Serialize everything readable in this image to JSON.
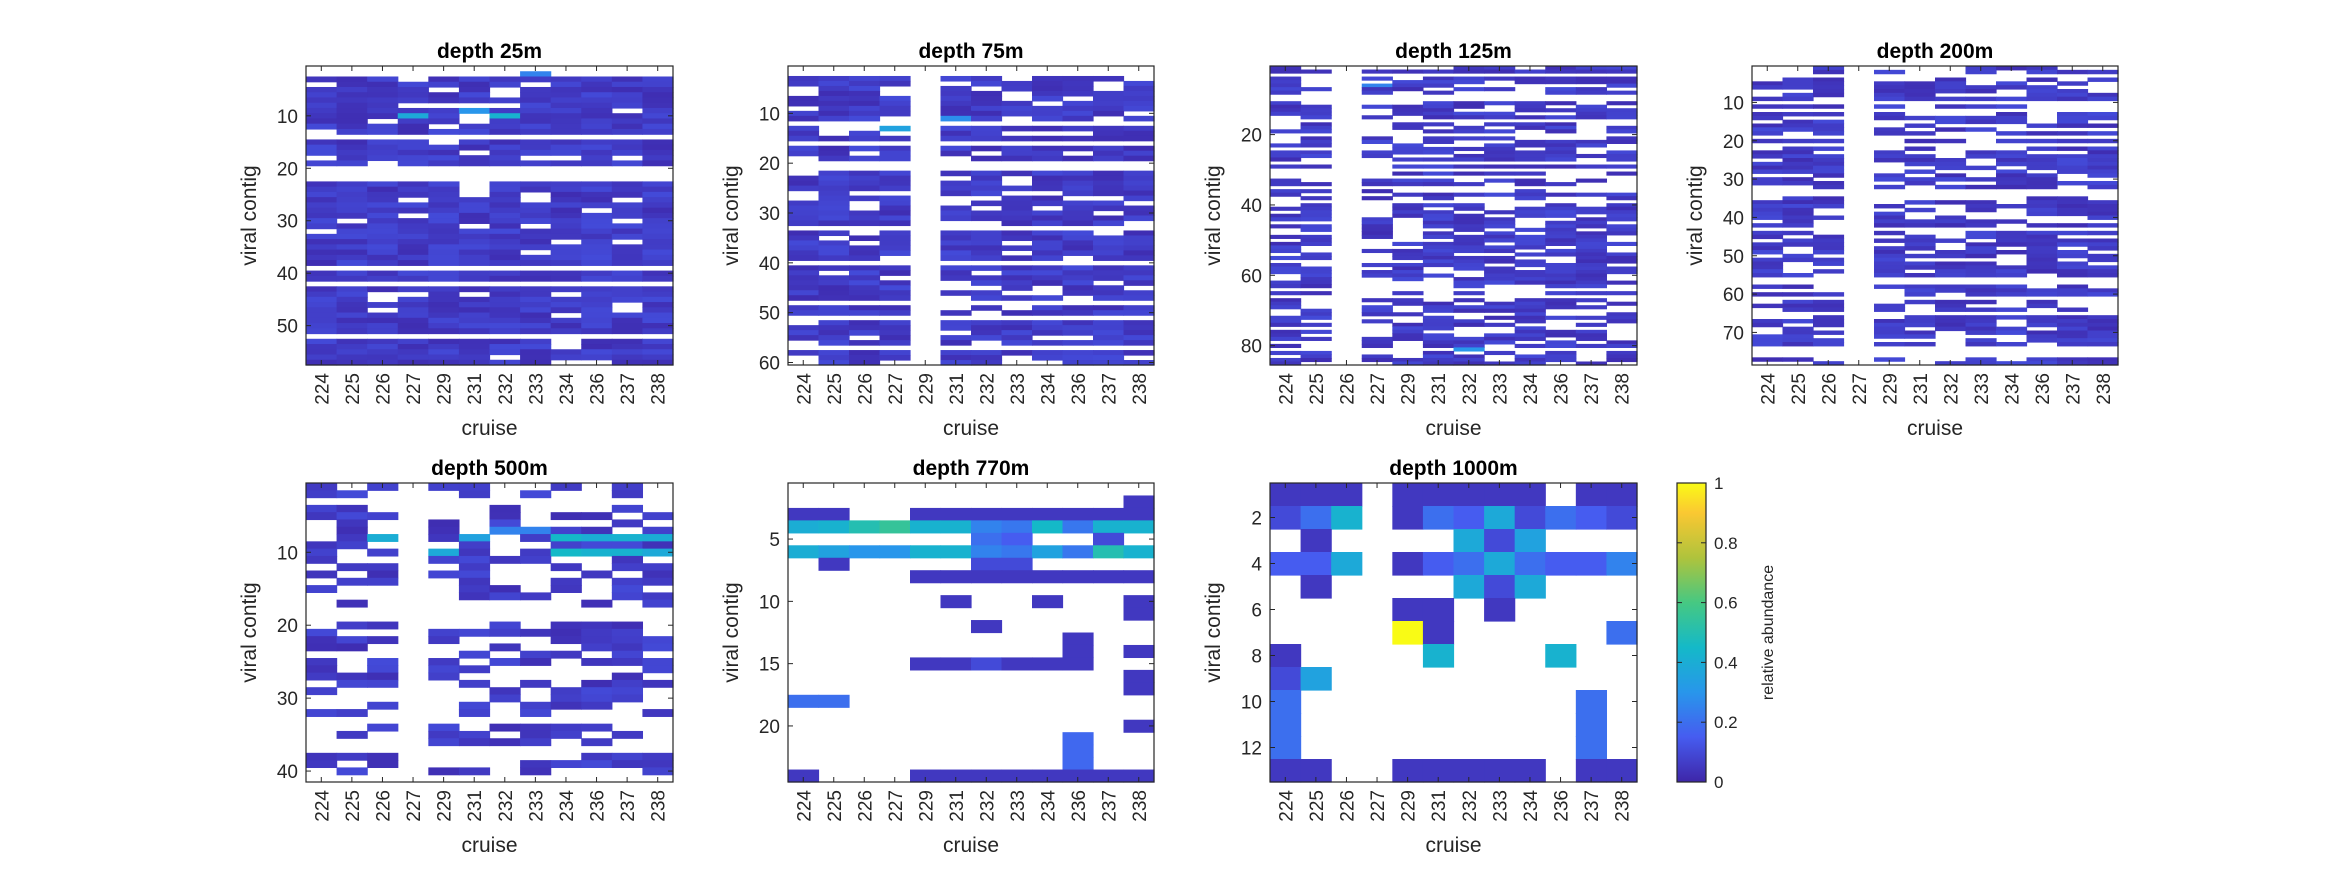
{
  "chart_data": [
    {
      "type": "heatmap",
      "title": "depth 25m",
      "xlabel": "cruise",
      "ylabel": "viral contig",
      "x": [
        "224",
        "225",
        "226",
        "227",
        "229",
        "231",
        "232",
        "233",
        "234",
        "236",
        "237",
        "238"
      ],
      "rows": 57,
      "yticks": [
        10,
        20,
        30,
        40,
        50
      ],
      "fill_rows": [
        2,
        3,
        4,
        5,
        6,
        7,
        8,
        9,
        10,
        11,
        12,
        14,
        15,
        16,
        17,
        18,
        22,
        23,
        24,
        25,
        26,
        27,
        28,
        29,
        30,
        31,
        32,
        33,
        34,
        35,
        36,
        37,
        39,
        40,
        42,
        43,
        44,
        45,
        46,
        47,
        48,
        49,
        50,
        52,
        53,
        54,
        55,
        56
      ],
      "blank_cols": [],
      "sparse": 0.1,
      "seed": 11,
      "highlights": [
        [
          9,
          3,
          0.38
        ],
        [
          9,
          6,
          0.42
        ],
        [
          1,
          7,
          0.25
        ],
        [
          8,
          5,
          0.3
        ]
      ]
    },
    {
      "type": "heatmap",
      "title": "depth 75m",
      "xlabel": "cruise",
      "ylabel": "viral contig",
      "x": [
        "224",
        "225",
        "226",
        "227",
        "229",
        "231",
        "232",
        "233",
        "234",
        "236",
        "237",
        "238"
      ],
      "rows": 60,
      "yticks": [
        10,
        20,
        30,
        40,
        50,
        60
      ],
      "fill_rows": [
        2,
        3,
        4,
        5,
        6,
        7,
        8,
        9,
        10,
        12,
        13,
        14,
        16,
        17,
        18,
        21,
        22,
        23,
        24,
        25,
        26,
        27,
        28,
        29,
        30,
        31,
        33,
        34,
        35,
        36,
        37,
        38,
        40,
        41,
        42,
        43,
        44,
        45,
        46,
        48,
        49,
        51,
        52,
        53,
        54,
        55,
        57,
        58,
        59
      ],
      "blank_cols": [
        4
      ],
      "sparse": 0.15,
      "seed": 23,
      "highlights": [
        [
          12,
          3,
          0.35
        ],
        [
          10,
          5,
          0.28
        ]
      ]
    },
    {
      "type": "heatmap",
      "title": "depth 125m",
      "xlabel": "cruise",
      "ylabel": "viral contig",
      "x": [
        "224",
        "225",
        "226",
        "227",
        "229",
        "231",
        "232",
        "233",
        "234",
        "236",
        "237",
        "238"
      ],
      "rows": 85,
      "yticks": [
        20,
        40,
        60,
        80
      ],
      "fill_rows": [],
      "blank_cols": [
        2
      ],
      "sparse": 0.35,
      "seed": 37,
      "highlights": [
        [
          80,
          6,
          0.3
        ],
        [
          5,
          3,
          0.25
        ]
      ]
    },
    {
      "type": "heatmap",
      "title": "depth 200m",
      "xlabel": "cruise",
      "ylabel": "viral contig",
      "x": [
        "224",
        "225",
        "226",
        "227",
        "229",
        "231",
        "232",
        "233",
        "234",
        "236",
        "237",
        "238"
      ],
      "rows": 78,
      "yticks": [
        10,
        20,
        30,
        40,
        50,
        60,
        70
      ],
      "fill_rows": [],
      "blank_cols": [
        3
      ],
      "sparse": 0.3,
      "seed": 53,
      "highlights": []
    },
    {
      "type": "heatmap",
      "title": "depth 500m",
      "xlabel": "cruise",
      "ylabel": "viral contig",
      "x": [
        "224",
        "225",
        "226",
        "227",
        "229",
        "231",
        "232",
        "233",
        "234",
        "236",
        "237",
        "238"
      ],
      "rows": 41,
      "yticks": [
        10,
        20,
        30,
        40
      ],
      "fill_rows": [],
      "blank_cols": [
        3
      ],
      "sparse": 0.5,
      "seed": 71,
      "highlights": [
        [
          7,
          2,
          0.4
        ],
        [
          7,
          5,
          0.35
        ],
        [
          7,
          8,
          0.45
        ],
        [
          7,
          9,
          0.4
        ],
        [
          7,
          10,
          0.42
        ],
        [
          7,
          11,
          0.4
        ],
        [
          9,
          4,
          0.38
        ],
        [
          9,
          8,
          0.45
        ],
        [
          9,
          9,
          0.42
        ],
        [
          9,
          10,
          0.42
        ],
        [
          9,
          11,
          0.38
        ],
        [
          6,
          6,
          0.25
        ],
        [
          6,
          7,
          0.25
        ]
      ]
    },
    {
      "type": "heatmap",
      "title": "depth 770m",
      "xlabel": "cruise",
      "ylabel": "viral contig",
      "x": [
        "224",
        "225",
        "226",
        "227",
        "229",
        "231",
        "232",
        "233",
        "234",
        "236",
        "237",
        "238"
      ],
      "rows": 24,
      "yticks": [
        5,
        10,
        15,
        20
      ],
      "fill_rows": [],
      "blank_cols": [],
      "sparse": 1.0,
      "seed": 89,
      "cells": [
        [
          1,
          11,
          0.05
        ],
        [
          2,
          0,
          0.05
        ],
        [
          2,
          1,
          0.05
        ],
        [
          2,
          4,
          0.05
        ],
        [
          2,
          5,
          0.05
        ],
        [
          2,
          6,
          0.05
        ],
        [
          2,
          7,
          0.05
        ],
        [
          2,
          8,
          0.05
        ],
        [
          2,
          9,
          0.05
        ],
        [
          2,
          10,
          0.05
        ],
        [
          2,
          11,
          0.05
        ],
        [
          3,
          0,
          0.4
        ],
        [
          3,
          1,
          0.42
        ],
        [
          3,
          2,
          0.5
        ],
        [
          3,
          3,
          0.55
        ],
        [
          3,
          4,
          0.42
        ],
        [
          3,
          5,
          0.42
        ],
        [
          3,
          6,
          0.25
        ],
        [
          3,
          7,
          0.22
        ],
        [
          3,
          8,
          0.45
        ],
        [
          3,
          9,
          0.22
        ],
        [
          3,
          10,
          0.42
        ],
        [
          3,
          11,
          0.42
        ],
        [
          4,
          6,
          0.2
        ],
        [
          4,
          7,
          0.15
        ],
        [
          4,
          10,
          0.1
        ],
        [
          5,
          0,
          0.4
        ],
        [
          5,
          1,
          0.35
        ],
        [
          5,
          2,
          0.3
        ],
        [
          5,
          3,
          0.3
        ],
        [
          5,
          4,
          0.42
        ],
        [
          5,
          5,
          0.42
        ],
        [
          5,
          6,
          0.25
        ],
        [
          5,
          7,
          0.22
        ],
        [
          5,
          8,
          0.35
        ],
        [
          5,
          9,
          0.22
        ],
        [
          5,
          10,
          0.5
        ],
        [
          5,
          11,
          0.42
        ],
        [
          6,
          1,
          0.05
        ],
        [
          6,
          6,
          0.1
        ],
        [
          6,
          7,
          0.1
        ],
        [
          7,
          4,
          0.05
        ],
        [
          7,
          5,
          0.05
        ],
        [
          7,
          6,
          0.05
        ],
        [
          7,
          7,
          0.05
        ],
        [
          7,
          8,
          0.05
        ],
        [
          7,
          9,
          0.05
        ],
        [
          7,
          10,
          0.05
        ],
        [
          7,
          11,
          0.05
        ],
        [
          9,
          5,
          0.05
        ],
        [
          9,
          8,
          0.05
        ],
        [
          9,
          11,
          0.05
        ],
        [
          10,
          11,
          0.05
        ],
        [
          11,
          6,
          0.05
        ],
        [
          12,
          9,
          0.05
        ],
        [
          13,
          9,
          0.05
        ],
        [
          13,
          11,
          0.05
        ],
        [
          14,
          4,
          0.05
        ],
        [
          14,
          5,
          0.05
        ],
        [
          14,
          6,
          0.1
        ],
        [
          14,
          7,
          0.05
        ],
        [
          14,
          8,
          0.05
        ],
        [
          14,
          9,
          0.05
        ],
        [
          15,
          11,
          0.05
        ],
        [
          16,
          11,
          0.05
        ],
        [
          17,
          0,
          0.2
        ],
        [
          17,
          1,
          0.2
        ],
        [
          19,
          11,
          0.05
        ],
        [
          20,
          9,
          0.18
        ],
        [
          21,
          9,
          0.18
        ],
        [
          22,
          9,
          0.18
        ],
        [
          23,
          0,
          0.05
        ],
        [
          23,
          4,
          0.05
        ],
        [
          23,
          5,
          0.05
        ],
        [
          23,
          6,
          0.05
        ],
        [
          23,
          7,
          0.05
        ],
        [
          23,
          8,
          0.05
        ],
        [
          23,
          9,
          0.05
        ],
        [
          23,
          10,
          0.05
        ],
        [
          23,
          11,
          0.05
        ]
      ]
    },
    {
      "type": "heatmap",
      "title": "depth 1000m",
      "xlabel": "cruise",
      "ylabel": "viral contig",
      "x": [
        "224",
        "225",
        "226",
        "227",
        "229",
        "231",
        "232",
        "233",
        "234",
        "236",
        "237",
        "238"
      ],
      "rows": 13,
      "yticks": [
        2,
        4,
        6,
        8,
        10,
        12
      ],
      "fill_rows": [],
      "blank_cols": [],
      "sparse": 1.0,
      "seed": 97,
      "cells": [
        [
          0,
          0,
          0.05
        ],
        [
          0,
          1,
          0.05
        ],
        [
          0,
          2,
          0.05
        ],
        [
          0,
          4,
          0.05
        ],
        [
          0,
          5,
          0.05
        ],
        [
          0,
          6,
          0.05
        ],
        [
          0,
          7,
          0.05
        ],
        [
          0,
          8,
          0.05
        ],
        [
          0,
          10,
          0.05
        ],
        [
          0,
          11,
          0.05
        ],
        [
          1,
          0,
          0.1
        ],
        [
          1,
          1,
          0.2
        ],
        [
          1,
          2,
          0.42
        ],
        [
          1,
          4,
          0.05
        ],
        [
          1,
          5,
          0.2
        ],
        [
          1,
          6,
          0.15
        ],
        [
          1,
          7,
          0.38
        ],
        [
          1,
          8,
          0.1
        ],
        [
          1,
          9,
          0.2
        ],
        [
          1,
          10,
          0.15
        ],
        [
          1,
          11,
          0.1
        ],
        [
          2,
          1,
          0.05
        ],
        [
          2,
          6,
          0.38
        ],
        [
          2,
          7,
          0.1
        ],
        [
          2,
          8,
          0.35
        ],
        [
          3,
          0,
          0.15
        ],
        [
          3,
          1,
          0.15
        ],
        [
          3,
          2,
          0.38
        ],
        [
          3,
          4,
          0.05
        ],
        [
          3,
          5,
          0.15
        ],
        [
          3,
          6,
          0.2
        ],
        [
          3,
          7,
          0.38
        ],
        [
          3,
          8,
          0.2
        ],
        [
          3,
          9,
          0.15
        ],
        [
          3,
          10,
          0.15
        ],
        [
          3,
          11,
          0.25
        ],
        [
          4,
          1,
          0.05
        ],
        [
          4,
          6,
          0.38
        ],
        [
          4,
          7,
          0.1
        ],
        [
          4,
          8,
          0.38
        ],
        [
          5,
          4,
          0.05
        ],
        [
          5,
          5,
          0.05
        ],
        [
          5,
          7,
          0.05
        ],
        [
          6,
          4,
          1.0
        ],
        [
          6,
          5,
          0.05
        ],
        [
          6,
          11,
          0.2
        ],
        [
          7,
          0,
          0.05
        ],
        [
          7,
          5,
          0.42
        ],
        [
          7,
          9,
          0.42
        ],
        [
          8,
          0,
          0.1
        ],
        [
          8,
          1,
          0.35
        ],
        [
          9,
          0,
          0.2
        ],
        [
          9,
          10,
          0.2
        ],
        [
          10,
          0,
          0.2
        ],
        [
          10,
          10,
          0.2
        ],
        [
          11,
          0,
          0.2
        ],
        [
          11,
          10,
          0.2
        ],
        [
          12,
          0,
          0.05
        ],
        [
          12,
          1,
          0.05
        ],
        [
          12,
          4,
          0.05
        ],
        [
          12,
          5,
          0.05
        ],
        [
          12,
          6,
          0.05
        ],
        [
          12,
          7,
          0.05
        ],
        [
          12,
          8,
          0.05
        ],
        [
          12,
          10,
          0.05
        ],
        [
          12,
          11,
          0.05
        ]
      ]
    }
  ],
  "colorbar": {
    "label": "relative abundance",
    "ticks": [
      "0",
      "0.2",
      "0.4",
      "0.6",
      "0.8",
      "1"
    ],
    "colormap": "parula",
    "range": [
      0,
      1
    ]
  }
}
